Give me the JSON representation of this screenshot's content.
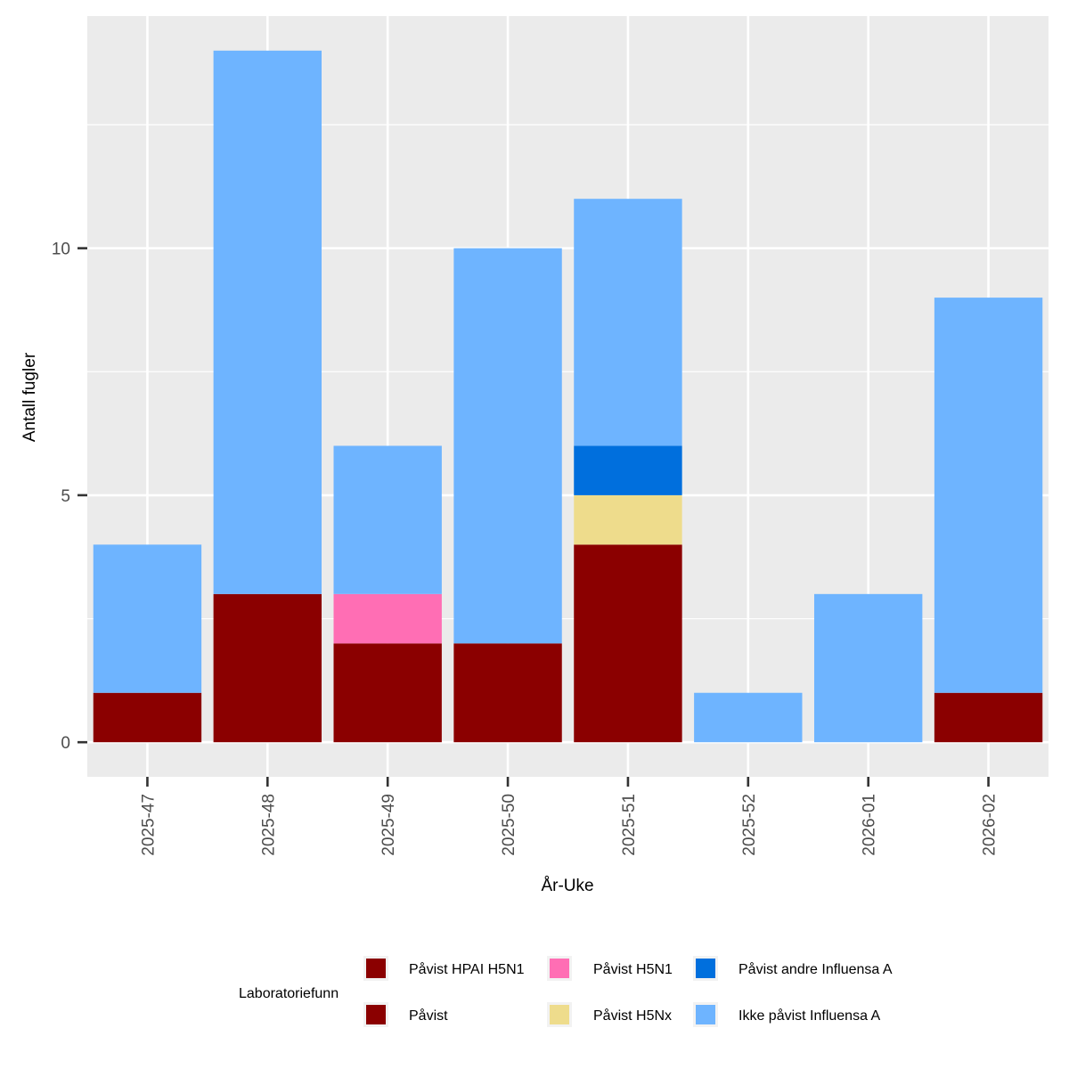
{
  "chart_data": {
    "type": "bar",
    "stacked": true,
    "title": "",
    "xlabel": "År-Uke",
    "ylabel": "Antall fugler",
    "ylim": [
      -0.7,
      14.7
    ],
    "yticks": [
      0,
      5,
      10
    ],
    "grid": true,
    "categories": [
      "2025-47",
      "2025-48",
      "2025-49",
      "2025-50",
      "2025-51",
      "2025-52",
      "2026-01",
      "2026-02"
    ],
    "series": [
      {
        "name": "Påvist HPAI H5N1",
        "color": "#8B0000",
        "values": [
          0,
          0,
          0,
          0,
          0,
          0,
          0,
          0
        ]
      },
      {
        "name": "Påvist",
        "color": "#8B0000",
        "values": [
          1,
          3,
          2,
          2,
          4,
          0,
          0,
          1
        ]
      },
      {
        "name": "Påvist H5N1",
        "color": "#FF6EB4",
        "values": [
          0,
          0,
          1,
          0,
          0,
          0,
          0,
          0
        ]
      },
      {
        "name": "Påvist H5Nx",
        "color": "#EEDC8C",
        "values": [
          0,
          0,
          0,
          0,
          1,
          0,
          0,
          0
        ]
      },
      {
        "name": "Påvist andre Influensa A",
        "color": "#006FDD",
        "values": [
          0,
          0,
          0,
          0,
          1,
          0,
          0,
          0
        ]
      },
      {
        "name": "Ikke påvist Influensa A",
        "color": "#6EB4FF",
        "values": [
          3,
          11,
          3,
          8,
          5,
          1,
          3,
          8
        ]
      }
    ],
    "legend": {
      "title": "Laboratoriefunn",
      "position": "bottom",
      "entries": [
        {
          "label": "Påvist HPAI H5N1",
          "color": "#8B0000"
        },
        {
          "label": "Påvist",
          "color": "#8B0000"
        },
        {
          "label": "Påvist H5N1",
          "color": "#FF6EB4"
        },
        {
          "label": "Påvist H5Nx",
          "color": "#EEDC8C"
        },
        {
          "label": "Påvist andre Influensa A",
          "color": "#006FDD"
        },
        {
          "label": "Ikke påvist Influensa A",
          "color": "#6EB4FF"
        }
      ]
    }
  }
}
